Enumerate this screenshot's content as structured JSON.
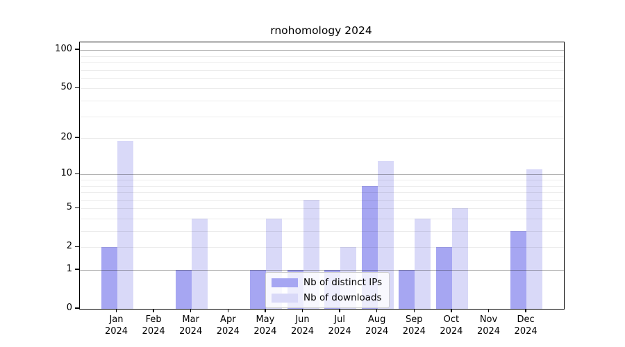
{
  "chart_data": {
    "type": "bar",
    "title": "rnohomology 2024",
    "categories": [
      "Jan 2024",
      "Feb 2024",
      "Mar 2024",
      "Apr 2024",
      "May 2024",
      "Jun 2024",
      "Jul 2024",
      "Aug 2024",
      "Sep 2024",
      "Oct 2024",
      "Nov 2024",
      "Dec 2024"
    ],
    "series": [
      {
        "name": "Nb of distinct IPs",
        "color": "#a6a6f2",
        "values": [
          2,
          0,
          1,
          0,
          1,
          1,
          1,
          8,
          1,
          2,
          0,
          3
        ]
      },
      {
        "name": "Nb of downloads",
        "color": "#d9d9f8",
        "values": [
          19,
          0,
          4,
          0,
          4,
          6,
          2,
          13,
          4,
          5,
          0,
          11
        ]
      }
    ],
    "xlabel": "",
    "ylabel": "",
    "yscale": "log1p",
    "ylim": [
      0,
      115
    ],
    "y_ticks": [
      0,
      1,
      2,
      5,
      10,
      20,
      50,
      100
    ],
    "grid": {
      "on": true,
      "major_values": [
        1,
        10,
        100
      ],
      "minor_values": [
        2,
        3,
        4,
        5,
        6,
        7,
        8,
        9,
        20,
        30,
        40,
        50,
        60,
        70,
        80,
        90
      ]
    },
    "legend_position": "lower center"
  }
}
